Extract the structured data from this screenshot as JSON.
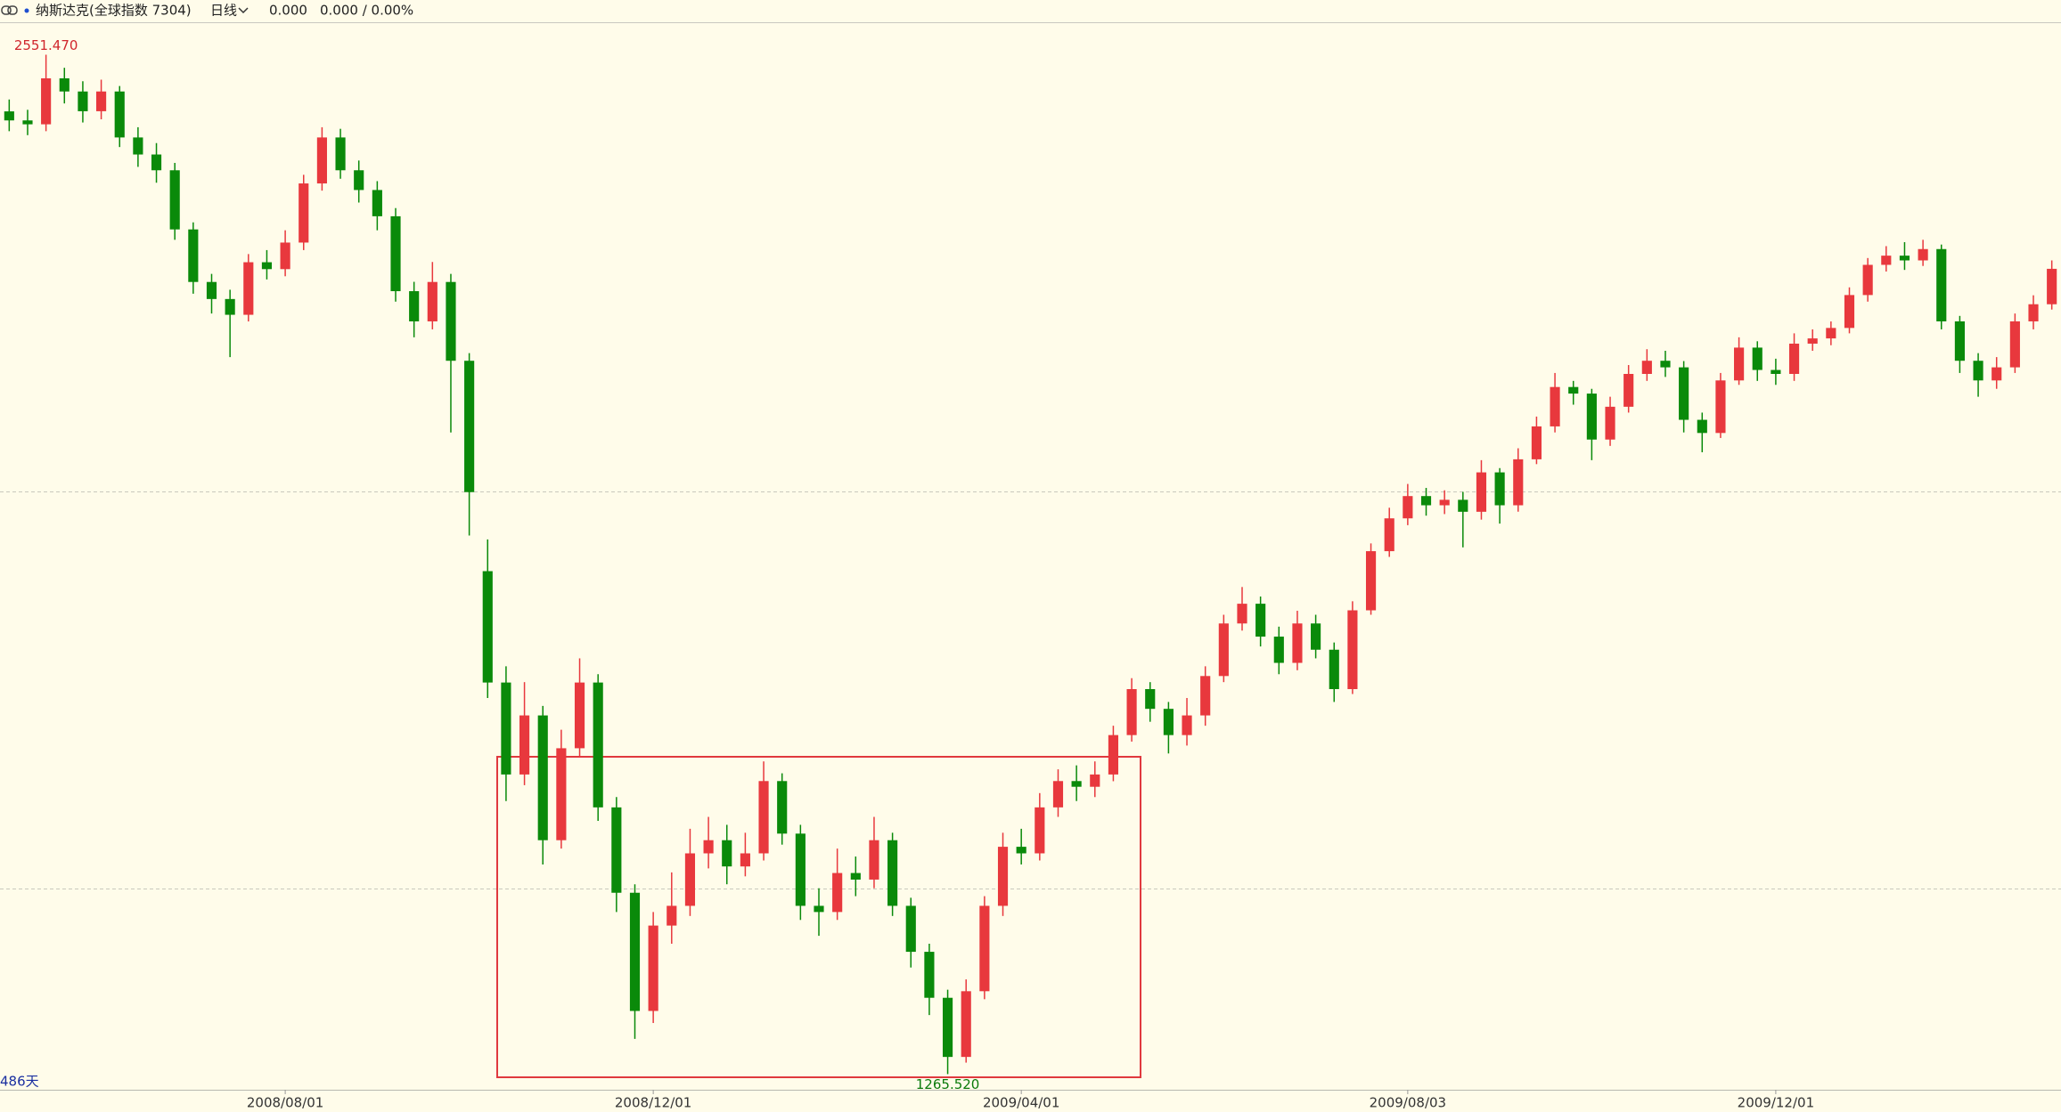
{
  "chart_data": {
    "type": "candlestick",
    "toolbar": {
      "name": "纳斯达克(全球指数 7304)",
      "period": "日线",
      "price": "0.000",
      "change": "0.000 / 0.00%"
    },
    "days_label": "486天",
    "max_label": "2551.470",
    "min_label": "1265.520",
    "up_color": "#e8383d",
    "down_color": "#0a8a0a",
    "ylim": [
      1245.8,
      2591.3
    ],
    "xlim": [
      -0.5,
      111.5
    ],
    "grid_levels": [
      1500,
      2000
    ],
    "grid": true,
    "xticks": [
      {
        "value": 15,
        "label": "2008/08/01"
      },
      {
        "value": 35,
        "label": "2008/12/01"
      },
      {
        "value": 55,
        "label": "2009/04/01"
      },
      {
        "value": 76,
        "label": "2009/08/03"
      },
      {
        "value": 96,
        "label": "2009/12/01"
      }
    ],
    "open": [
      2480.0,
      2468.6,
      2463.7,
      2521.7,
      2505.1,
      2480.2,
      2505.1,
      2447.1,
      2425.6,
      2405.7,
      2331.1,
      2264.8,
      2243.3,
      2223.4,
      2289.7,
      2281.0,
      2314.5,
      2389.1,
      2447.1,
      2405.7,
      2380.8,
      2347.7,
      2253.2,
      2215.1,
      2264.8,
      2165.4,
      1900.0,
      1759.5,
      1643.5,
      1718.0,
      1560.6,
      1676.6,
      1759.5,
      1602.0,
      1494.3,
      1345.2,
      1452.9,
      1477.8,
      1544.0,
      1560.6,
      1527.5,
      1544.0,
      1635.2,
      1568.9,
      1477.8,
      1470.0,
      1519.2,
      1510.9,
      1560.6,
      1477.8,
      1419.8,
      1361.8,
      1287.2,
      1370.1,
      1477.8,
      1552.3,
      1544.0,
      1602.0,
      1635.2,
      1628.0,
      1643.5,
      1693.2,
      1751.2,
      1726.3,
      1693.2,
      1718.0,
      1767.7,
      1834.0,
      1858.9,
      1817.4,
      1784.3,
      1834.0,
      1800.9,
      1751.2,
      1850.6,
      1925.2,
      1966.6,
      1994.7,
      1983.1,
      1990.0,
      1974.9,
      2024.6,
      1983.1,
      2041.1,
      2082.6,
      2132.3,
      2124.0,
      2066.0,
      2107.4,
      2148.8,
      2165.4,
      2157.1,
      2090.9,
      2074.3,
      2140.6,
      2182.0,
      2153.8,
      2148.8,
      2187.0,
      2193.6,
      2206.8,
      2248.3,
      2286.4,
      2298.0,
      2292.0,
      2306.3,
      2215.1,
      2165.4,
      2140.6,
      2157.1,
      2215.1,
      2236.7
    ],
    "high": [
      2495.0,
      2482.0,
      2551.47,
      2535.0,
      2518.0,
      2520.0,
      2512.0,
      2460.0,
      2440.0,
      2415.0,
      2340.0,
      2275.0,
      2255.0,
      2300.0,
      2305.0,
      2330.0,
      2400.0,
      2460.0,
      2458.0,
      2418.0,
      2392.0,
      2358.0,
      2265.0,
      2290.0,
      2275.0,
      2175.0,
      1940.0,
      1780.0,
      1760.0,
      1730.0,
      1700.0,
      1790.0,
      1770.0,
      1615.0,
      1505.0,
      1470.0,
      1520.0,
      1575.0,
      1590.0,
      1580.0,
      1570.0,
      1660.0,
      1645.0,
      1580.0,
      1500.0,
      1550.0,
      1540.0,
      1590.0,
      1570.0,
      1488.0,
      1430.0,
      1372.0,
      1385.0,
      1490.0,
      1570.0,
      1575.0,
      1620.0,
      1650.0,
      1655.0,
      1660.0,
      1705.0,
      1765.0,
      1760.0,
      1735.0,
      1740.0,
      1780.0,
      1845.0,
      1880.0,
      1868.0,
      1830.0,
      1850.0,
      1845.0,
      1810.0,
      1862.0,
      1935.0,
      1980.0,
      2010.0,
      2005.0,
      2002.0,
      2000.0,
      2040.0,
      2030.0,
      2055.0,
      2095.0,
      2150.0,
      2140.0,
      2130.0,
      2120.0,
      2160.0,
      2180.0,
      2178.0,
      2165.0,
      2100.0,
      2150.0,
      2195.0,
      2190.0,
      2168.0,
      2200.0,
      2205.0,
      2215.0,
      2258.0,
      2295.0,
      2310.0,
      2315.0,
      2318.0,
      2312.0,
      2222.0,
      2175.0,
      2170.0,
      2225.0,
      2248.0,
      2292.0
    ],
    "low": [
      2455.0,
      2450.0,
      2455.0,
      2490.0,
      2466.0,
      2470.0,
      2435.0,
      2410.0,
      2390.0,
      2318.0,
      2250.0,
      2225.0,
      2170.0,
      2215.0,
      2268.0,
      2272.0,
      2305.0,
      2380.0,
      2395.0,
      2365.0,
      2330.0,
      2240.0,
      2195.0,
      2205.0,
      2075.0,
      1945.0,
      1740.0,
      1610.0,
      1630.0,
      1530.0,
      1550.0,
      1665.0,
      1585.0,
      1470.0,
      1310.0,
      1330.0,
      1430.0,
      1465.0,
      1525.0,
      1505.0,
      1515.0,
      1535.0,
      1555.0,
      1460.0,
      1440.0,
      1460.0,
      1490.0,
      1500.0,
      1465.0,
      1400.0,
      1340.0,
      1265.52,
      1280.0,
      1360.0,
      1465.0,
      1530.0,
      1535.0,
      1590.0,
      1610.0,
      1615.0,
      1635.0,
      1685.0,
      1710.0,
      1670.0,
      1680.0,
      1705.0,
      1760.0,
      1825.0,
      1805.0,
      1770.0,
      1775.0,
      1790.0,
      1735.0,
      1745.0,
      1845.0,
      1918.0,
      1958.0,
      1970.0,
      1972.0,
      1930.0,
      1965.0,
      1960.0,
      1975.0,
      2035.0,
      2075.0,
      2110.0,
      2040.0,
      2058.0,
      2100.0,
      2140.0,
      2145.0,
      2075.0,
      2050.0,
      2068.0,
      2135.0,
      2140.0,
      2135.0,
      2140.0,
      2178.0,
      2185.0,
      2200.0,
      2240.0,
      2278.0,
      2280.0,
      2285.0,
      2205.0,
      2150.0,
      2120.0,
      2130.0,
      2150.0,
      2205.0,
      2230.0
    ],
    "close": [
      2468.6,
      2463.7,
      2521.7,
      2505.1,
      2480.2,
      2505.1,
      2447.1,
      2425.6,
      2405.7,
      2331.1,
      2264.8,
      2243.3,
      2223.4,
      2289.7,
      2281.0,
      2314.5,
      2389.1,
      2447.1,
      2405.7,
      2380.8,
      2347.7,
      2253.2,
      2215.1,
      2264.8,
      2165.4,
      1999.7,
      1759.5,
      1643.5,
      1718.0,
      1560.6,
      1676.6,
      1759.5,
      1602.0,
      1494.3,
      1345.2,
      1452.9,
      1477.8,
      1544.0,
      1560.6,
      1527.5,
      1544.0,
      1635.2,
      1568.9,
      1477.8,
      1470.0,
      1519.2,
      1510.9,
      1560.6,
      1477.8,
      1419.8,
      1361.8,
      1287.2,
      1370.1,
      1477.8,
      1552.3,
      1544.0,
      1602.0,
      1635.2,
      1628.0,
      1643.5,
      1693.2,
      1751.2,
      1726.3,
      1693.2,
      1718.0,
      1767.7,
      1834.0,
      1858.9,
      1817.4,
      1784.3,
      1834.0,
      1800.9,
      1751.2,
      1850.6,
      1925.2,
      1966.6,
      1994.7,
      1983.1,
      1990.0,
      1974.9,
      2024.6,
      1983.1,
      2041.1,
      2082.6,
      2132.3,
      2124.0,
      2066.0,
      2107.4,
      2148.8,
      2165.4,
      2157.1,
      2090.9,
      2074.3,
      2140.6,
      2182.0,
      2153.8,
      2148.8,
      2187.0,
      2193.6,
      2206.8,
      2248.3,
      2286.4,
      2298.0,
      2292.0,
      2306.3,
      2215.1,
      2165.4,
      2140.6,
      2157.1,
      2215.1,
      2236.7,
      2281.4
    ]
  }
}
